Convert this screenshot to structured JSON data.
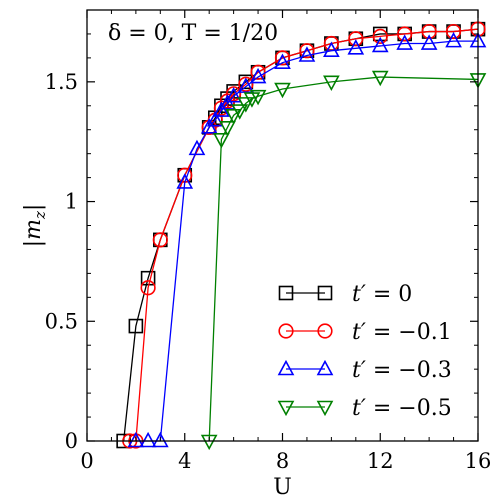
{
  "chart_data": {
    "type": "line",
    "annotation": "δ = 0,  T = 1/20",
    "xlabel": "U",
    "ylabel": "|m_z|",
    "xlim": [
      0,
      16
    ],
    "ylim": [
      0,
      1.8
    ],
    "xticks": [
      0,
      4,
      8,
      12,
      16
    ],
    "yticks": [
      0,
      0.5,
      1,
      1.5
    ],
    "ytick_labels": [
      "0",
      "0.5",
      "1",
      "1.5"
    ],
    "grid": false,
    "legend_position": "bottom-right",
    "series": [
      {
        "name": "t′ = 0",
        "legend_prefix": "t′ = ",
        "legend_value": "0",
        "color": "#000000",
        "marker": "square",
        "x": [
          1.5,
          2.0,
          2.5,
          3.0,
          4.0,
          5.0,
          5.25,
          5.5,
          5.75,
          6.0,
          6.5,
          7.0,
          8.0,
          9.0,
          10.0,
          11.0,
          12.0,
          13.0,
          14.0,
          15.0,
          16.0
        ],
        "y": [
          0.0,
          0.48,
          0.68,
          0.84,
          1.11,
          1.31,
          1.35,
          1.4,
          1.43,
          1.46,
          1.5,
          1.54,
          1.6,
          1.63,
          1.66,
          1.68,
          1.7,
          1.7,
          1.71,
          1.71,
          1.72
        ]
      },
      {
        "name": "t′ = −0.1",
        "legend_prefix": "t′ = ",
        "legend_value": "−0.1",
        "color": "#ff0000",
        "marker": "circle",
        "x": [
          1.75,
          2.0,
          2.5,
          3.0,
          4.0,
          5.0,
          5.25,
          5.5,
          5.75,
          6.0,
          6.5,
          7.0,
          8.0,
          9.0,
          10.0,
          11.0,
          12.0,
          13.0,
          14.0,
          15.0,
          16.0
        ],
        "y": [
          0.0,
          0.0,
          0.64,
          0.84,
          1.11,
          1.31,
          1.34,
          1.39,
          1.42,
          1.45,
          1.49,
          1.54,
          1.6,
          1.63,
          1.66,
          1.68,
          1.69,
          1.7,
          1.71,
          1.71,
          1.72
        ]
      },
      {
        "name": "t′ = −0.3",
        "legend_prefix": "t′ = ",
        "legend_value": "−0.3",
        "color": "#0000ff",
        "marker": "triangle-up",
        "x": [
          2.0,
          2.5,
          3.0,
          4.0,
          4.5,
          5.0,
          5.25,
          5.5,
          5.75,
          6.0,
          6.5,
          7.0,
          8.0,
          9.0,
          10.0,
          11.0,
          12.0,
          13.0,
          14.0,
          15.0,
          16.0
        ],
        "y": [
          0.0,
          0.0,
          0.0,
          1.08,
          1.22,
          1.31,
          1.34,
          1.38,
          1.41,
          1.44,
          1.48,
          1.52,
          1.58,
          1.61,
          1.63,
          1.64,
          1.65,
          1.66,
          1.66,
          1.67,
          1.67
        ]
      },
      {
        "name": "t′ = −0.5",
        "legend_prefix": "t′ = ",
        "legend_value": "−0.5",
        "color": "#008000",
        "marker": "triangle-down",
        "x": [
          5.0,
          5.5,
          5.75,
          6.0,
          6.25,
          6.5,
          6.75,
          7.0,
          8.0,
          10.0,
          12.0,
          16.0
        ],
        "y": [
          0.0,
          1.26,
          1.31,
          1.36,
          1.38,
          1.41,
          1.43,
          1.44,
          1.47,
          1.5,
          1.52,
          1.51
        ]
      }
    ]
  }
}
